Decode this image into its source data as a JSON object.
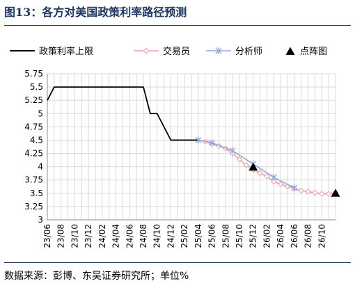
{
  "title": "图13：各方对美国政策利率路径预测",
  "source": "数据来源：彭博、东吴证券研究所；单位%",
  "chart_data": {
    "type": "line",
    "ylim": [
      3,
      5.75
    ],
    "yticks": [
      "5.75",
      "5.5",
      "5.25",
      "5",
      "4.75",
      "4.5",
      "4.25",
      "4",
      "3.75",
      "3.5",
      "3.25",
      "3"
    ],
    "xticks": [
      "23/06",
      "23/08",
      "23/10",
      "23/12",
      "24/02",
      "24/04",
      "24/06",
      "24/08",
      "24/10",
      "24/12",
      "25/02",
      "25/04",
      "25/06",
      "25/08",
      "25/10",
      "25/12",
      "26/02",
      "26/04",
      "26/06",
      "26/08",
      "26/10"
    ],
    "grid": true,
    "legend_position": "top",
    "series": [
      {
        "name": "政策利率上限",
        "color": "#000000",
        "style": "line",
        "points": [
          [
            "2023-06-01",
            5.25
          ],
          [
            "2023-07-01",
            5.5
          ],
          [
            "2023-08-01",
            5.5
          ],
          [
            "2023-09-01",
            5.5
          ],
          [
            "2023-10-01",
            5.5
          ],
          [
            "2023-11-01",
            5.5
          ],
          [
            "2023-12-01",
            5.5
          ],
          [
            "2024-01-01",
            5.5
          ],
          [
            "2024-02-01",
            5.5
          ],
          [
            "2024-03-01",
            5.5
          ],
          [
            "2024-04-01",
            5.5
          ],
          [
            "2024-05-01",
            5.5
          ],
          [
            "2024-06-01",
            5.5
          ],
          [
            "2024-07-01",
            5.5
          ],
          [
            "2024-08-01",
            5.5
          ],
          [
            "2024-09-01",
            5.0
          ],
          [
            "2024-10-01",
            5.0
          ],
          [
            "2024-11-01",
            4.75
          ],
          [
            "2024-12-01",
            4.5
          ],
          [
            "2025-01-01",
            4.5
          ],
          [
            "2025-02-01",
            4.5
          ],
          [
            "2025-03-01",
            4.5
          ],
          [
            "2025-04-01",
            4.5
          ]
        ]
      },
      {
        "name": "交易员",
        "color": "#f4a0a8",
        "style": "diamond",
        "points": [
          [
            "2025-05-01",
            4.47
          ],
          [
            "2025-06-01",
            4.43
          ],
          [
            "2025-07-01",
            4.39
          ],
          [
            "2025-08-01",
            4.34
          ],
          [
            "2025-09-01",
            4.25
          ],
          [
            "2025-10-01",
            4.14
          ],
          [
            "2025-11-01",
            4.03
          ],
          [
            "2025-12-01",
            3.94
          ],
          [
            "2026-01-01",
            3.88
          ],
          [
            "2026-02-01",
            3.82
          ],
          [
            "2026-03-01",
            3.72
          ],
          [
            "2026-04-01",
            3.67
          ],
          [
            "2026-05-01",
            3.63
          ],
          [
            "2026-06-01",
            3.59
          ],
          [
            "2026-07-01",
            3.55
          ],
          [
            "2026-08-01",
            3.53
          ],
          [
            "2026-09-01",
            3.51
          ],
          [
            "2026-10-01",
            3.49
          ],
          [
            "2026-11-01",
            3.49
          ],
          [
            "2026-12-01",
            3.51
          ]
        ]
      },
      {
        "name": "分析师",
        "color": "#8eaadb",
        "style": "x",
        "points": [
          [
            "2025-04-01",
            4.5
          ],
          [
            "2025-06-01",
            4.45
          ],
          [
            "2025-09-01",
            4.3
          ],
          [
            "2025-12-01",
            4.05
          ],
          [
            "2026-03-01",
            3.8
          ],
          [
            "2026-06-01",
            3.6
          ]
        ]
      },
      {
        "name": "点阵图",
        "color": "#000000",
        "style": "triangle",
        "points": [
          [
            "2025-12-01",
            3.99
          ],
          [
            "2026-12-01",
            3.5
          ]
        ]
      }
    ]
  }
}
